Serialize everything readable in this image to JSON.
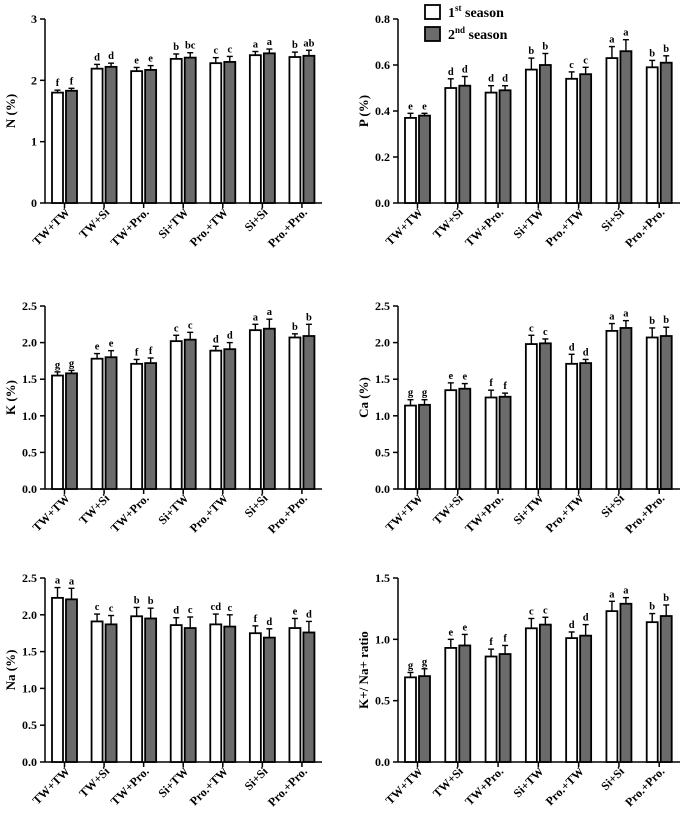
{
  "colors": {
    "season1": "#ffffff",
    "season2": "#6b6b6b",
    "axis": "#000000"
  },
  "legend": {
    "s1_num": "1",
    "s1_sup": "st",
    "s1_word": " season",
    "s2_num": "2",
    "s2_sup": "nd",
    "s2_word": " season"
  },
  "chart_data": [
    {
      "type": "bar",
      "ylabel": "N (%)",
      "ylim": [
        0,
        3
      ],
      "yticks": [
        "0",
        "1",
        "2",
        "3"
      ],
      "categories": [
        "TW+TW",
        "TW+Si",
        "TW+Pro.",
        "Si+TW",
        "Pro.+TW",
        "Si+Si",
        "Pro.+Pro."
      ],
      "series": [
        {
          "name": "1st season",
          "values": [
            1.8,
            2.19,
            2.15,
            2.35,
            2.28,
            2.41,
            2.38
          ],
          "errors": [
            0.04,
            0.07,
            0.06,
            0.08,
            0.09,
            0.06,
            0.08
          ],
          "labels": [
            "f",
            "d",
            "e",
            "b",
            "c",
            "a",
            "b"
          ]
        },
        {
          "name": "2nd season",
          "values": [
            1.83,
            2.22,
            2.17,
            2.37,
            2.3,
            2.44,
            2.4
          ],
          "errors": [
            0.04,
            0.06,
            0.07,
            0.08,
            0.09,
            0.07,
            0.09
          ],
          "labels": [
            "f",
            "d",
            "e",
            "bc",
            "c",
            "a",
            "ab"
          ]
        }
      ]
    },
    {
      "type": "bar",
      "ylabel": "P (%)",
      "ylim": [
        0,
        0.8
      ],
      "yticks": [
        "0.0",
        "0.2",
        "0.4",
        "0.6",
        "0.8"
      ],
      "categories": [
        "TW+TW",
        "TW+Si",
        "TW+Pro.",
        "Si+TW",
        "Pro.+TW",
        "Si+Si",
        "Pro.+Pro."
      ],
      "series": [
        {
          "name": "1st season",
          "values": [
            0.37,
            0.5,
            0.48,
            0.58,
            0.54,
            0.63,
            0.59
          ],
          "errors": [
            0.02,
            0.04,
            0.03,
            0.05,
            0.03,
            0.05,
            0.03
          ],
          "labels": [
            "e",
            "d",
            "d",
            "b",
            "c",
            "a",
            "b"
          ]
        },
        {
          "name": "2nd season",
          "values": [
            0.38,
            0.51,
            0.49,
            0.6,
            0.56,
            0.66,
            0.61
          ],
          "errors": [
            0.01,
            0.04,
            0.02,
            0.05,
            0.03,
            0.05,
            0.03
          ],
          "labels": [
            "e",
            "d",
            "d",
            "b",
            "c",
            "a",
            "b"
          ]
        }
      ]
    },
    {
      "type": "bar",
      "ylabel": "K (%)",
      "ylim": [
        0,
        2.5
      ],
      "yticks": [
        "0.0",
        "0.5",
        "1.0",
        "1.5",
        "2.0",
        "2.5"
      ],
      "categories": [
        "TW+TW",
        "TW+Si",
        "TW+Pro.",
        "Si+TW",
        "Pro.+TW",
        "Si+Si",
        "Pro.+Pro."
      ],
      "series": [
        {
          "name": "1st season",
          "values": [
            1.55,
            1.78,
            1.71,
            2.02,
            1.89,
            2.17,
            2.07
          ],
          "errors": [
            0.05,
            0.07,
            0.06,
            0.08,
            0.06,
            0.08,
            0.05
          ],
          "labels": [
            "g",
            "e",
            "f",
            "c",
            "d",
            "a",
            "b"
          ]
        },
        {
          "name": "2nd season",
          "values": [
            1.58,
            1.8,
            1.72,
            2.04,
            1.91,
            2.19,
            2.09
          ],
          "errors": [
            0.04,
            0.09,
            0.07,
            0.1,
            0.09,
            0.13,
            0.16
          ],
          "labels": [
            "g",
            "e",
            "f",
            "c",
            "d",
            "a",
            "b"
          ]
        }
      ]
    },
    {
      "type": "bar",
      "ylabel": "Ca (%)",
      "ylim": [
        0,
        2.5
      ],
      "yticks": [
        "0.0",
        "0.5",
        "1.0",
        "1.5",
        "2.0",
        "2.5"
      ],
      "categories": [
        "TW+TW",
        "TW+Si",
        "TW+Pro.",
        "Si+TW",
        "Pro.+TW",
        "Si+Si",
        "Pro.+Pro."
      ],
      "series": [
        {
          "name": "1st season",
          "values": [
            1.14,
            1.35,
            1.25,
            1.98,
            1.71,
            2.16,
            2.07
          ],
          "errors": [
            0.08,
            0.1,
            0.1,
            0.12,
            0.13,
            0.1,
            0.13
          ],
          "labels": [
            "g",
            "e",
            "f",
            "c",
            "d",
            "a",
            "b"
          ]
        },
        {
          "name": "2nd season",
          "values": [
            1.15,
            1.37,
            1.26,
            1.99,
            1.72,
            2.2,
            2.09
          ],
          "errors": [
            0.07,
            0.07,
            0.05,
            0.06,
            0.05,
            0.1,
            0.12
          ],
          "labels": [
            "g",
            "e",
            "f",
            "c",
            "d",
            "a",
            "b"
          ]
        }
      ]
    },
    {
      "type": "bar",
      "ylabel": "Na (%)",
      "ylim": [
        0,
        2.5
      ],
      "yticks": [
        "0.0",
        "0.5",
        "1.0",
        "1.5",
        "2.0",
        "2.5"
      ],
      "categories": [
        "TW+TW",
        "TW+Si",
        "TW+Pro.",
        "Si+TW",
        "Pro.+TW",
        "Si+Si",
        "Pro.+Pro."
      ],
      "series": [
        {
          "name": "1st season",
          "values": [
            2.23,
            1.91,
            1.98,
            1.86,
            1.87,
            1.75,
            1.82
          ],
          "errors": [
            0.14,
            0.1,
            0.12,
            0.1,
            0.14,
            0.1,
            0.13
          ],
          "labels": [
            "a",
            "c",
            "b",
            "d",
            "cd",
            "f",
            "e"
          ]
        },
        {
          "name": "2nd season",
          "values": [
            2.21,
            1.87,
            1.95,
            1.82,
            1.84,
            1.69,
            1.76
          ],
          "errors": [
            0.15,
            0.12,
            0.14,
            0.15,
            0.16,
            0.12,
            0.15
          ],
          "labels": [
            "a",
            "c",
            "b",
            "c",
            "c",
            "d",
            "d"
          ]
        }
      ]
    },
    {
      "type": "bar",
      "ylabel": "K+/ Na+ ratio",
      "ylim": [
        0,
        1.5
      ],
      "yticks": [
        "0.0",
        "0.5",
        "1.0",
        "1.5"
      ],
      "categories": [
        "TW+TW",
        "TW+Si",
        "TW+Pro.",
        "Si+TW",
        "Pro.+TW",
        "Si+Si",
        "Pro.+Pro."
      ],
      "series": [
        {
          "name": "1st season",
          "values": [
            0.69,
            0.93,
            0.86,
            1.09,
            1.01,
            1.23,
            1.14
          ],
          "errors": [
            0.04,
            0.07,
            0.06,
            0.08,
            0.05,
            0.08,
            0.07
          ],
          "labels": [
            "g",
            "e",
            "f",
            "c",
            "d",
            "a",
            "b"
          ]
        },
        {
          "name": "2nd season",
          "values": [
            0.7,
            0.95,
            0.88,
            1.12,
            1.03,
            1.29,
            1.19
          ],
          "errors": [
            0.06,
            0.09,
            0.07,
            0.06,
            0.09,
            0.05,
            0.09
          ],
          "labels": [
            "g",
            "e",
            "f",
            "c",
            "d",
            "a",
            "b"
          ]
        }
      ]
    }
  ]
}
